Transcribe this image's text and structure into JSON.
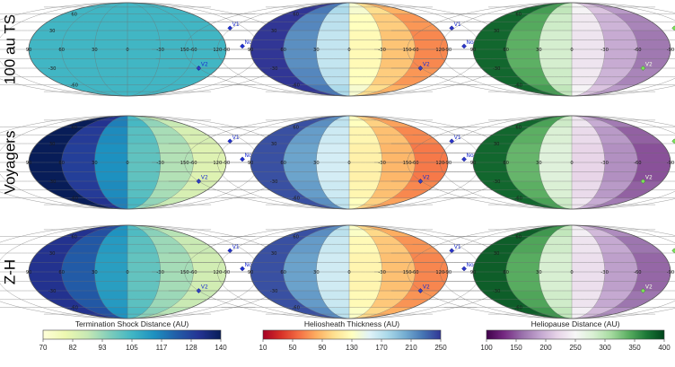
{
  "chart_data": {
    "type": "heatmap",
    "projection": "mollweide",
    "row_labels": [
      "100 au TS",
      "Voyagers",
      "Z-H"
    ],
    "grid": true,
    "longitude_labels": [
      "-150",
      "-120",
      "-90",
      "-60",
      "-30",
      "0",
      "30",
      "60",
      "90",
      "120",
      "150"
    ],
    "latitude_labels": [
      "-60",
      "-30",
      "30",
      "60"
    ],
    "markers": [
      {
        "name": "V1",
        "lon": -105,
        "lat": 34,
        "label": "V1"
      },
      {
        "name": "V2",
        "lon": -71,
        "lat": -30,
        "label": "V2"
      },
      {
        "name": "Nose",
        "lon": -105,
        "lat": 5,
        "label": "Nose"
      }
    ],
    "colorbars": [
      {
        "title": "Termination Shock Distance (AU)",
        "colormap": "YlGnBu",
        "ticks": [
          "70",
          "82",
          "93",
          "105",
          "117",
          "128",
          "140"
        ],
        "range": [
          70,
          140
        ],
        "colors": [
          "#ffffd9",
          "#edf8b1",
          "#c7e9b4",
          "#7fcdbb",
          "#41b6c4",
          "#1d91c0",
          "#225ea8",
          "#253494",
          "#081d58"
        ]
      },
      {
        "title": "Heliosheath Thickness (AU)",
        "colormap": "RdYlBu",
        "ticks": [
          "10",
          "50",
          "90",
          "130",
          "170",
          "210",
          "250"
        ],
        "range": [
          10,
          250
        ],
        "colors": [
          "#a50026",
          "#d73027",
          "#f46d43",
          "#fdae61",
          "#fee090",
          "#ffffbf",
          "#e0f3f8",
          "#abd9e9",
          "#74add1",
          "#4575b4",
          "#313695"
        ]
      },
      {
        "title": "Heliopause Distance (AU)",
        "colormap": "PRGn",
        "ticks": [
          "100",
          "150",
          "200",
          "250",
          "300",
          "350",
          "400"
        ],
        "range": [
          100,
          400
        ],
        "colors": [
          "#40004b",
          "#762a83",
          "#9970ab",
          "#c2a5cf",
          "#e7d4e8",
          "#f7f7f7",
          "#d9f0d3",
          "#a6dba0",
          "#5aae61",
          "#1b7837",
          "#00441b"
        ]
      }
    ],
    "panels": [
      {
        "row": 0,
        "col": 0,
        "value_nose": 105,
        "value_tail": 105,
        "spread": 0
      },
      {
        "row": 0,
        "col": 1,
        "value_nose": 55,
        "value_tail": 250,
        "spread": 1
      },
      {
        "row": 0,
        "col": 2,
        "value_nose": 150,
        "value_tail": 380,
        "spread": 1
      },
      {
        "row": 1,
        "col": 0,
        "value_nose": 78,
        "value_tail": 140,
        "spread": 1
      },
      {
        "row": 1,
        "col": 1,
        "value_nose": 50,
        "value_tail": 240,
        "spread": 1
      },
      {
        "row": 1,
        "col": 2,
        "value_nose": 130,
        "value_tail": 380,
        "spread": 1
      },
      {
        "row": 2,
        "col": 0,
        "value_nose": 82,
        "value_tail": 132,
        "spread": 1
      },
      {
        "row": 2,
        "col": 1,
        "value_nose": 55,
        "value_tail": 240,
        "spread": 1
      },
      {
        "row": 2,
        "col": 2,
        "value_nose": 140,
        "value_tail": 385,
        "spread": 1
      }
    ]
  }
}
